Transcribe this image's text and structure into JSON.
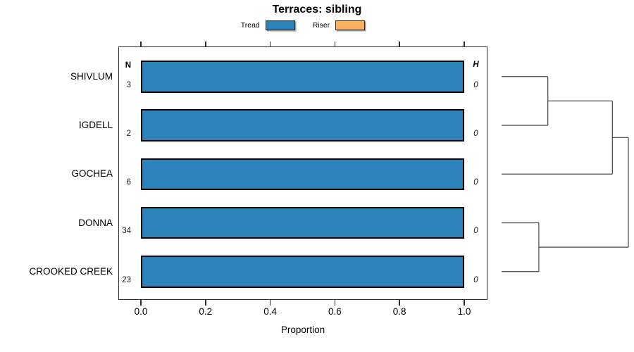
{
  "chart_data": {
    "type": "bar",
    "subtype": "stacked-horizontal-proportion",
    "title": "Terraces: sibling",
    "xlabel": "Proportion",
    "xlim": [
      0,
      1
    ],
    "x_ticks": [
      0,
      0.2,
      0.4,
      0.6,
      0.8,
      1
    ],
    "x_tick_labels": [
      "0.0",
      "0.2",
      "0.4",
      "0.6",
      "0.8",
      "1.0"
    ],
    "categories": [
      "SHIVLUM",
      "IGDELL",
      "GOCHEA",
      "DONNA",
      "CROOKED CREEK"
    ],
    "series": [
      {
        "name": "Tread",
        "color": "#2B83BA",
        "values": [
          1,
          1,
          1,
          1,
          1
        ]
      },
      {
        "name": "Riser",
        "color": "#FDAE61",
        "values": [
          0,
          0,
          0,
          0,
          0
        ]
      }
    ],
    "left_annotation": {
      "header": "N",
      "values": [
        "3",
        "2",
        "6",
        "34",
        "23"
      ]
    },
    "right_annotation": {
      "header": "H",
      "values": [
        "0",
        "0",
        "0",
        "0",
        "0"
      ]
    },
    "legend_position": "top",
    "grid": false,
    "dendrogram": {
      "side": "right",
      "leaves": [
        "SHIVLUM",
        "IGDELL",
        "GOCHEA",
        "DONNA",
        "CROOKED CREEK"
      ],
      "merges": [
        {
          "a": "SHIVLUM",
          "b": "IGDELL",
          "height": 0.365
        },
        {
          "a": "merge0",
          "b": "GOCHEA",
          "height": 0.874
        },
        {
          "a": "DONNA",
          "b": "CROOKED CREEK",
          "height": 0.294
        },
        {
          "a": "merge1",
          "b": "merge2",
          "height": 1.0
        }
      ]
    },
    "colors": {
      "bar_border": "#000000",
      "frame": "#2b2b2b",
      "dendrogram_line": "#444444"
    }
  }
}
